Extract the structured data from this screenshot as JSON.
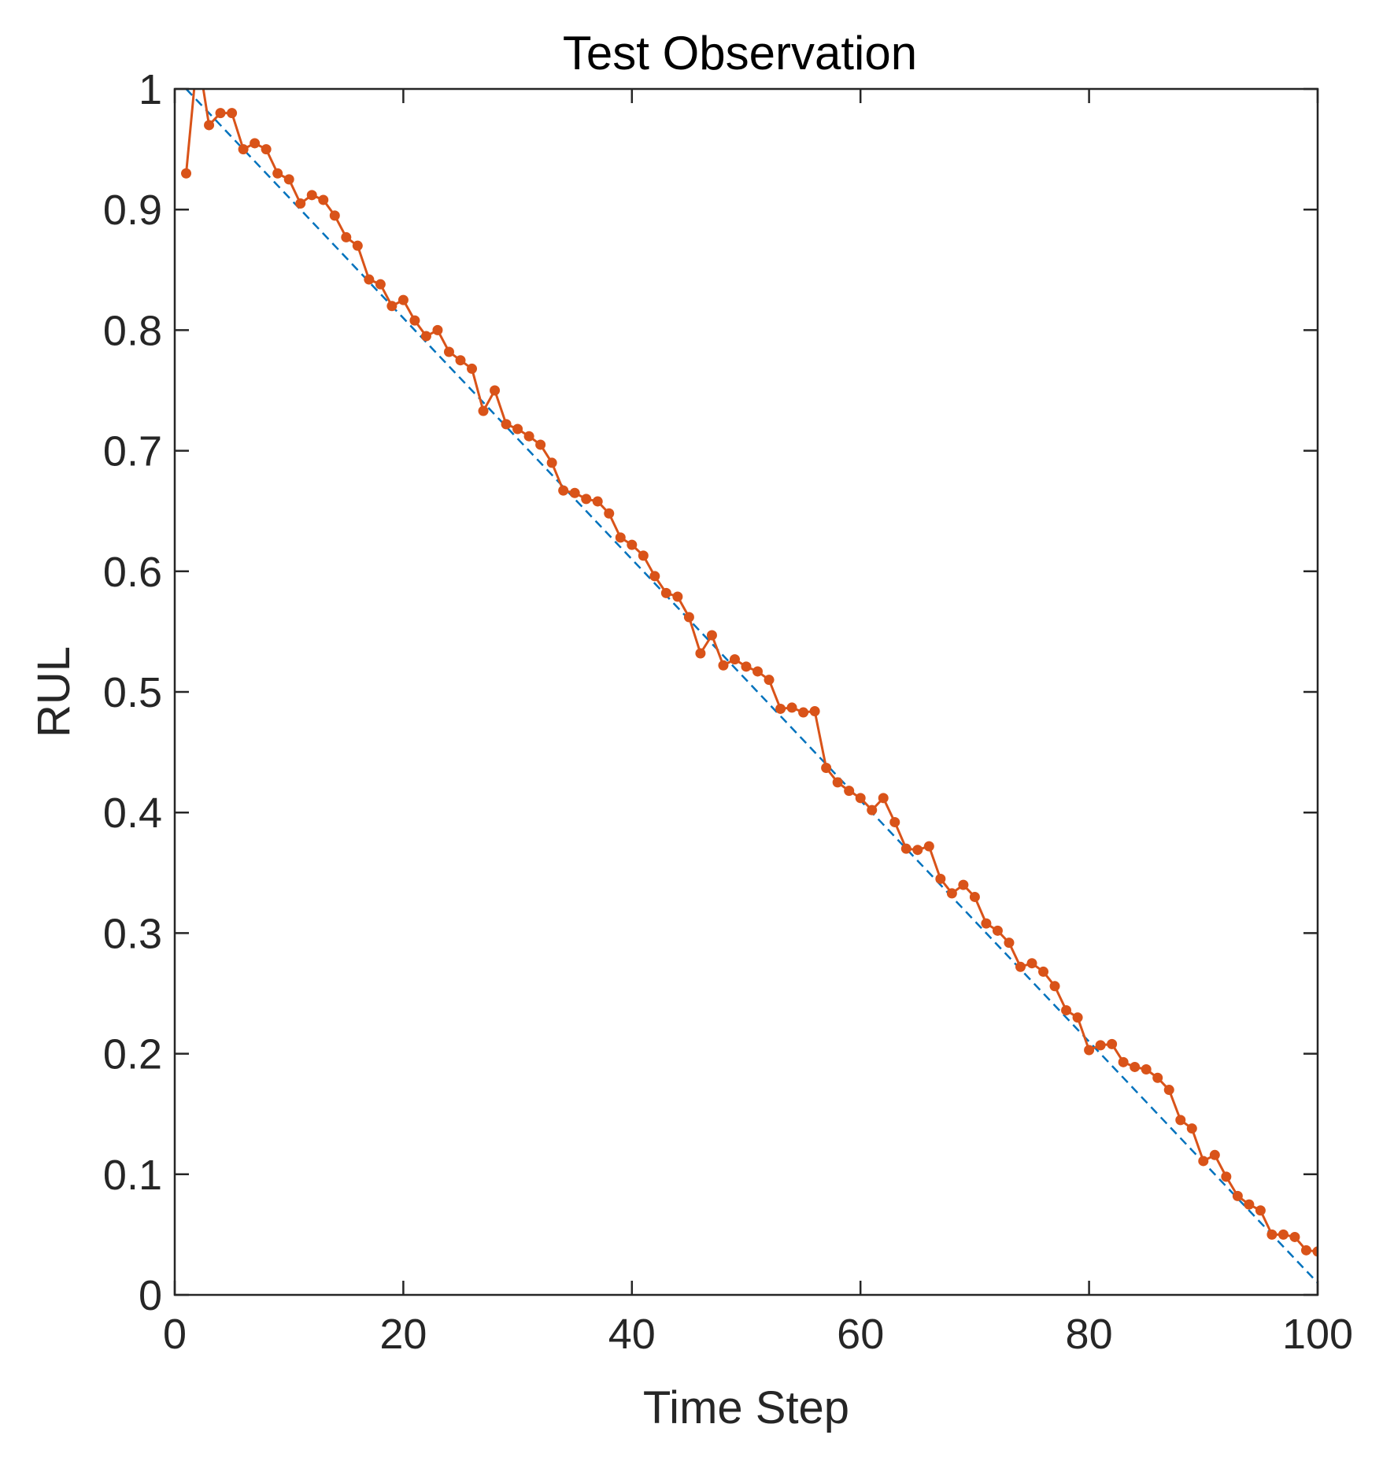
{
  "chart_data": {
    "type": "line",
    "title": "Test Observation",
    "xlabel": "Time Step",
    "ylabel": "RUL",
    "xlim": [
      0,
      100
    ],
    "ylim": [
      0,
      1
    ],
    "x_ticks": [
      0,
      20,
      40,
      60,
      80,
      100
    ],
    "x_tick_labels": [
      "0",
      "20",
      "40",
      "60",
      "80",
      "100"
    ],
    "y_ticks": [
      0,
      0.1,
      0.2,
      0.3,
      0.4,
      0.5,
      0.6,
      0.7,
      0.8,
      0.9,
      1
    ],
    "y_tick_labels": [
      "0",
      "0.1",
      "0.2",
      "0.3",
      "0.4",
      "0.5",
      "0.6",
      "0.7",
      "0.8",
      "0.9",
      "1"
    ],
    "grid": false,
    "legend": "none",
    "series": [
      {
        "style": "dashed",
        "color": "#0072BD",
        "x": [
          1,
          100
        ],
        "y": [
          1.0,
          0.01
        ]
      },
      {
        "style": "solid-with-dot-markers",
        "color": "#D95319",
        "x": [
          1,
          2,
          3,
          4,
          5,
          6,
          7,
          8,
          9,
          10,
          11,
          12,
          13,
          14,
          15,
          16,
          17,
          18,
          19,
          20,
          21,
          22,
          23,
          24,
          25,
          26,
          27,
          28,
          29,
          30,
          31,
          32,
          33,
          34,
          35,
          36,
          37,
          38,
          39,
          40,
          41,
          42,
          43,
          44,
          45,
          46,
          47,
          48,
          49,
          50,
          51,
          52,
          53,
          54,
          55,
          56,
          57,
          58,
          59,
          60,
          61,
          62,
          63,
          64,
          65,
          66,
          67,
          68,
          69,
          70,
          71,
          72,
          73,
          74,
          75,
          76,
          77,
          78,
          79,
          80,
          81,
          82,
          83,
          84,
          85,
          86,
          87,
          88,
          89,
          90,
          91,
          92,
          93,
          94,
          95,
          96,
          97,
          98,
          99,
          100
        ],
        "y": [
          0.93,
          1.03,
          0.97,
          0.98,
          0.98,
          0.95,
          0.955,
          0.95,
          0.93,
          0.925,
          0.905,
          0.912,
          0.908,
          0.895,
          0.877,
          0.87,
          0.842,
          0.838,
          0.82,
          0.825,
          0.808,
          0.795,
          0.8,
          0.782,
          0.775,
          0.768,
          0.733,
          0.75,
          0.722,
          0.718,
          0.712,
          0.705,
          0.69,
          0.667,
          0.665,
          0.66,
          0.658,
          0.648,
          0.628,
          0.622,
          0.613,
          0.596,
          0.582,
          0.579,
          0.562,
          0.532,
          0.547,
          0.522,
          0.527,
          0.521,
          0.517,
          0.51,
          0.486,
          0.487,
          0.483,
          0.484,
          0.437,
          0.425,
          0.418,
          0.412,
          0.402,
          0.412,
          0.392,
          0.37,
          0.369,
          0.372,
          0.345,
          0.333,
          0.34,
          0.33,
          0.308,
          0.302,
          0.292,
          0.272,
          0.275,
          0.268,
          0.256,
          0.236,
          0.23,
          0.203,
          0.207,
          0.208,
          0.193,
          0.189,
          0.187,
          0.18,
          0.17,
          0.145,
          0.138,
          0.111,
          0.116,
          0.098,
          0.082,
          0.075,
          0.07,
          0.05,
          0.05,
          0.048,
          0.037,
          0.036
        ]
      }
    ]
  }
}
